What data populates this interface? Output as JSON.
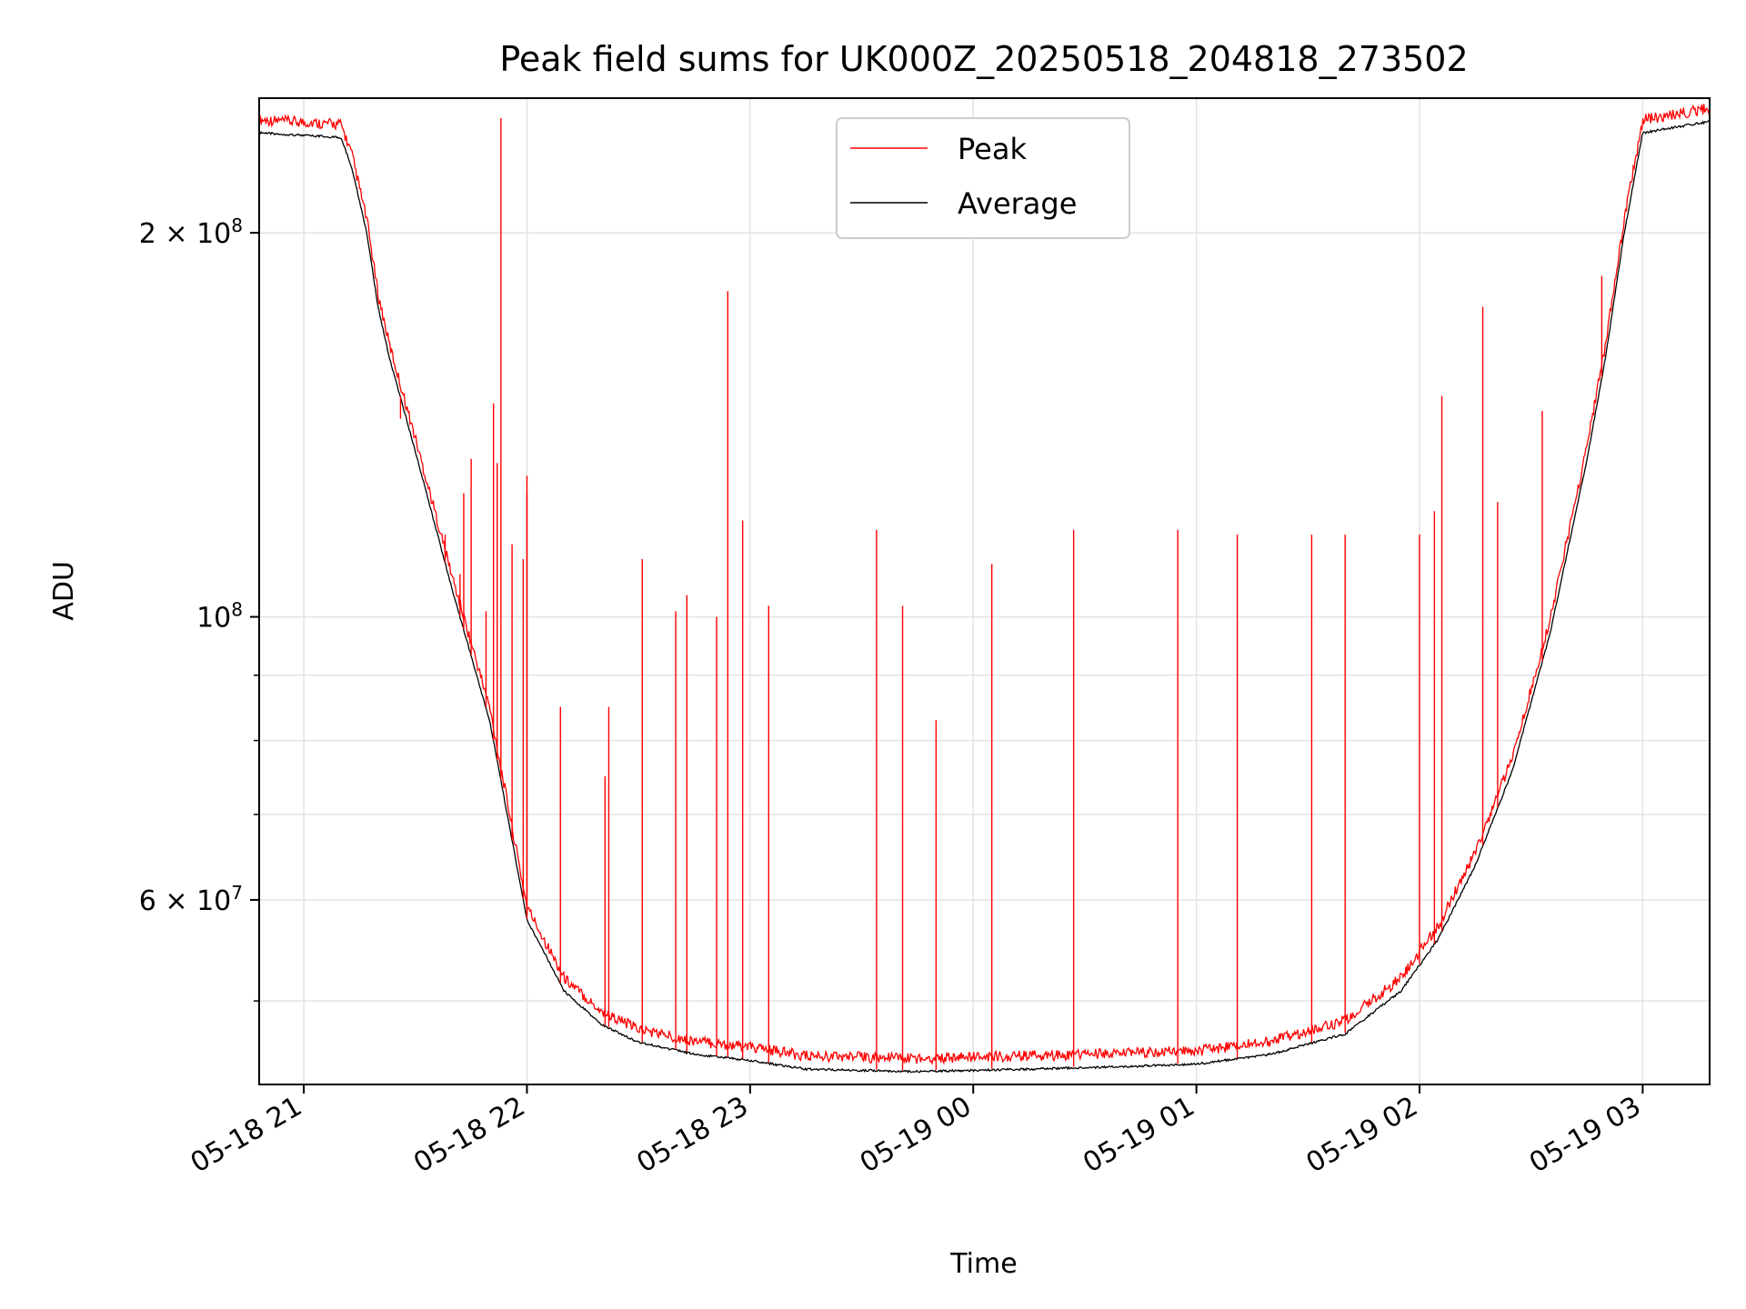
{
  "chart_data": {
    "type": "line",
    "title": "Peak field sums for UK000Z_20250518_204818_273502",
    "xlabel": "Time",
    "ylabel": "ADU",
    "y_scale": "log",
    "grid": true,
    "legend_position": "upper center",
    "xlim": [
      "2025-05-18 20:48",
      "2025-05-19 03:18"
    ],
    "ylim": [
      43000000,
      255000000
    ],
    "x_ticks": [
      {
        "time": "2025-05-18 21:00",
        "label": "05-18 21"
      },
      {
        "time": "2025-05-18 22:00",
        "label": "05-18 22"
      },
      {
        "time": "2025-05-18 23:00",
        "label": "05-18 23"
      },
      {
        "time": "2025-05-19 00:00",
        "label": "05-19 00"
      },
      {
        "time": "2025-05-19 01:00",
        "label": "05-19 01"
      },
      {
        "time": "2025-05-19 02:00",
        "label": "05-19 02"
      },
      {
        "time": "2025-05-19 03:00",
        "label": "05-19 03"
      }
    ],
    "y_major_ticks": [
      {
        "value": 60000000,
        "mantissa": "6",
        "exponent": "7"
      },
      {
        "value": 100000000,
        "mantissa": "",
        "exponent": "8"
      },
      {
        "value": 200000000,
        "mantissa": "2",
        "exponent": "8"
      }
    ],
    "y_minor_grid": [
      50000000,
      70000000,
      80000000,
      90000000
    ],
    "series": [
      {
        "name": "Peak",
        "color": "#ff0000"
      },
      {
        "name": "Average",
        "color": "#000000"
      }
    ],
    "baseline": [
      {
        "time": "2025-05-18 20:48",
        "value": 240000000
      },
      {
        "time": "2025-05-18 21:10",
        "value": 238000000
      },
      {
        "time": "2025-05-18 21:13",
        "value": 225000000
      },
      {
        "time": "2025-05-18 21:17",
        "value": 200000000
      },
      {
        "time": "2025-05-18 21:20",
        "value": 175000000
      },
      {
        "time": "2025-05-18 21:23",
        "value": 160000000
      },
      {
        "time": "2025-05-18 21:30",
        "value": 135000000
      },
      {
        "time": "2025-05-18 21:40",
        "value": 105000000
      },
      {
        "time": "2025-05-18 21:50",
        "value": 83000000
      },
      {
        "time": "2025-05-18 22:00",
        "value": 58000000
      },
      {
        "time": "2025-05-18 22:10",
        "value": 51000000
      },
      {
        "time": "2025-05-18 22:20",
        "value": 48000000
      },
      {
        "time": "2025-05-18 22:30",
        "value": 46500000
      },
      {
        "time": "2025-05-18 22:45",
        "value": 45500000
      },
      {
        "time": "2025-05-18 23:00",
        "value": 45000000
      },
      {
        "time": "2025-05-18 23:15",
        "value": 44300000
      },
      {
        "time": "2025-05-18 23:45",
        "value": 44100000
      },
      {
        "time": "2025-05-19 00:15",
        "value": 44300000
      },
      {
        "time": "2025-05-19 00:40",
        "value": 44500000
      },
      {
        "time": "2025-05-19 01:00",
        "value": 44700000
      },
      {
        "time": "2025-05-19 01:20",
        "value": 45500000
      },
      {
        "time": "2025-05-19 01:40",
        "value": 47200000
      },
      {
        "time": "2025-05-19 01:55",
        "value": 51000000
      },
      {
        "time": "2025-05-19 02:05",
        "value": 56000000
      },
      {
        "time": "2025-05-19 02:15",
        "value": 64000000
      },
      {
        "time": "2025-05-19 02:25",
        "value": 76000000
      },
      {
        "time": "2025-05-19 02:35",
        "value": 97000000
      },
      {
        "time": "2025-05-19 02:45",
        "value": 133000000
      },
      {
        "time": "2025-05-19 02:50",
        "value": 160000000
      },
      {
        "time": "2025-05-19 02:55",
        "value": 200000000
      },
      {
        "time": "2025-05-19 03:00",
        "value": 240000000
      },
      {
        "time": "2025-05-19 03:18",
        "value": 245000000
      }
    ],
    "peak_spikes": [
      {
        "time": "2025-05-18 21:26",
        "value": 143000000
      },
      {
        "time": "2025-05-18 21:38",
        "value": 116000000
      },
      {
        "time": "2025-05-18 21:42",
        "value": 108000000
      },
      {
        "time": "2025-05-18 21:43",
        "value": 125000000
      },
      {
        "time": "2025-05-18 21:45",
        "value": 133000000
      },
      {
        "time": "2025-05-18 21:49",
        "value": 101000000
      },
      {
        "time": "2025-05-18 21:51",
        "value": 147000000
      },
      {
        "time": "2025-05-18 21:52",
        "value": 132000000
      },
      {
        "time": "2025-05-18 21:56",
        "value": 114000000
      },
      {
        "time": "2025-05-18 22:00",
        "value": 125000000
      },
      {
        "time": "2025-05-18 21:53",
        "value": 246000000
      },
      {
        "time": "2025-05-18 21:59",
        "value": 111000000
      },
      {
        "time": "2025-05-18 22:00",
        "value": 129000000
      },
      {
        "time": "2025-05-18 22:09",
        "value": 85000000
      },
      {
        "time": "2025-05-18 22:21",
        "value": 75000000
      },
      {
        "time": "2025-05-18 22:22",
        "value": 85000000
      },
      {
        "time": "2025-05-18 22:31",
        "value": 111000000
      },
      {
        "time": "2025-05-18 22:40",
        "value": 101000000
      },
      {
        "time": "2025-05-18 22:43",
        "value": 104000000
      },
      {
        "time": "2025-05-18 22:51",
        "value": 100000000
      },
      {
        "time": "2025-05-18 22:54",
        "value": 180000000
      },
      {
        "time": "2025-05-18 22:58",
        "value": 119000000
      },
      {
        "time": "2025-05-18 23:05",
        "value": 102000000
      },
      {
        "time": "2025-05-18 23:34",
        "value": 117000000
      },
      {
        "time": "2025-05-18 23:41",
        "value": 102000000
      },
      {
        "time": "2025-05-18 23:50",
        "value": 83000000
      },
      {
        "time": "2025-05-19 00:05",
        "value": 110000000
      },
      {
        "time": "2025-05-19 00:27",
        "value": 117000000
      },
      {
        "time": "2025-05-19 00:55",
        "value": 117000000
      },
      {
        "time": "2025-05-19 01:11",
        "value": 116000000
      },
      {
        "time": "2025-05-19 01:31",
        "value": 116000000
      },
      {
        "time": "2025-05-19 01:40",
        "value": 116000000
      },
      {
        "time": "2025-05-19 02:00",
        "value": 116000000
      },
      {
        "time": "2025-05-19 02:04",
        "value": 121000000
      },
      {
        "time": "2025-05-19 02:06",
        "value": 149000000
      },
      {
        "time": "2025-05-19 02:17",
        "value": 175000000
      },
      {
        "time": "2025-05-19 02:21",
        "value": 123000000
      },
      {
        "time": "2025-05-19 02:33",
        "value": 145000000
      },
      {
        "time": "2025-05-19 02:49",
        "value": 185000000
      }
    ]
  }
}
